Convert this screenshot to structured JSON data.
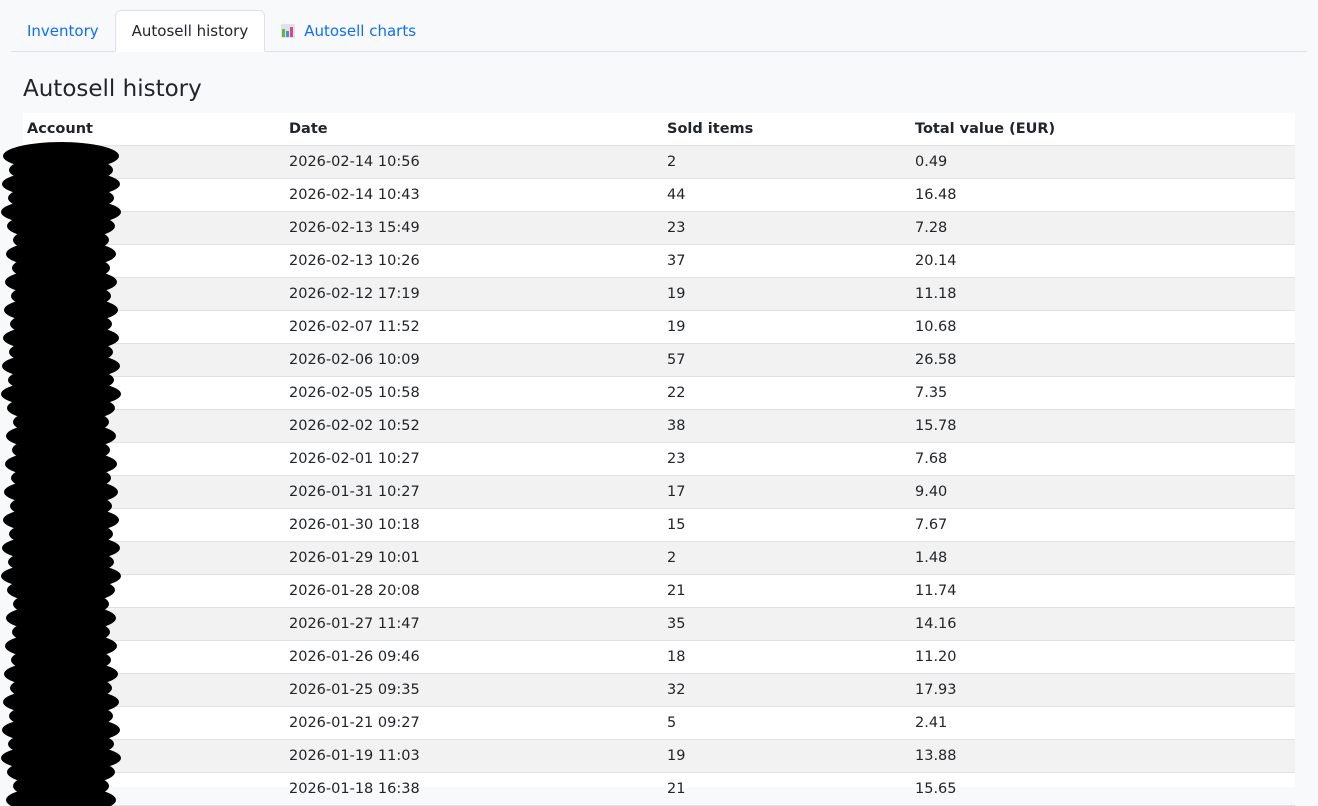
{
  "tabs": [
    {
      "label": "Inventory",
      "active": false
    },
    {
      "label": "Autosell history",
      "active": true
    },
    {
      "label": "Autosell charts",
      "active": false,
      "icon": "bar-chart-icon"
    }
  ],
  "page_title": "Autosell history",
  "table": {
    "headers": [
      "Account",
      "Date",
      "Sold items",
      "Total value (EUR)"
    ],
    "rows": [
      {
        "account": "",
        "date": "2026-02-14 10:56",
        "sold": "2",
        "total": "0.49"
      },
      {
        "account": "",
        "date": "2026-02-14 10:43",
        "sold": "44",
        "total": "16.48"
      },
      {
        "account": "",
        "date": "2026-02-13 15:49",
        "sold": "23",
        "total": "7.28"
      },
      {
        "account": "",
        "date": "2026-02-13 10:26",
        "sold": "37",
        "total": "20.14"
      },
      {
        "account": "",
        "date": "2026-02-12 17:19",
        "sold": "19",
        "total": "11.18"
      },
      {
        "account": "",
        "date": "2026-02-07 11:52",
        "sold": "19",
        "total": "10.68"
      },
      {
        "account": "",
        "date": "2026-02-06 10:09",
        "sold": "57",
        "total": "26.58"
      },
      {
        "account": "",
        "date": "2026-02-05 10:58",
        "sold": "22",
        "total": "7.35"
      },
      {
        "account": "",
        "date": "2026-02-02 10:52",
        "sold": "38",
        "total": "15.78"
      },
      {
        "account": "",
        "date": "2026-02-01 10:27",
        "sold": "23",
        "total": "7.68"
      },
      {
        "account": "",
        "date": "2026-01-31 10:27",
        "sold": "17",
        "total": "9.40"
      },
      {
        "account": "",
        "date": "2026-01-30 10:18",
        "sold": "15",
        "total": "7.67"
      },
      {
        "account": "",
        "date": "2026-01-29 10:01",
        "sold": "2",
        "total": "1.48"
      },
      {
        "account": "",
        "date": "2026-01-28 20:08",
        "sold": "21",
        "total": "11.74"
      },
      {
        "account": "",
        "date": "2026-01-27 11:47",
        "sold": "35",
        "total": "14.16"
      },
      {
        "account": "",
        "date": "2026-01-26 09:46",
        "sold": "18",
        "total": "11.20"
      },
      {
        "account": "",
        "date": "2026-01-25 09:35",
        "sold": "32",
        "total": "17.93"
      },
      {
        "account": "",
        "date": "2026-01-21 09:27",
        "sold": "5",
        "total": "2.41"
      },
      {
        "account": "",
        "date": "2026-01-19 11:03",
        "sold": "19",
        "total": "13.88"
      },
      {
        "account": "",
        "date": "2026-01-18 16:38",
        "sold": "21",
        "total": "15.65"
      }
    ]
  }
}
